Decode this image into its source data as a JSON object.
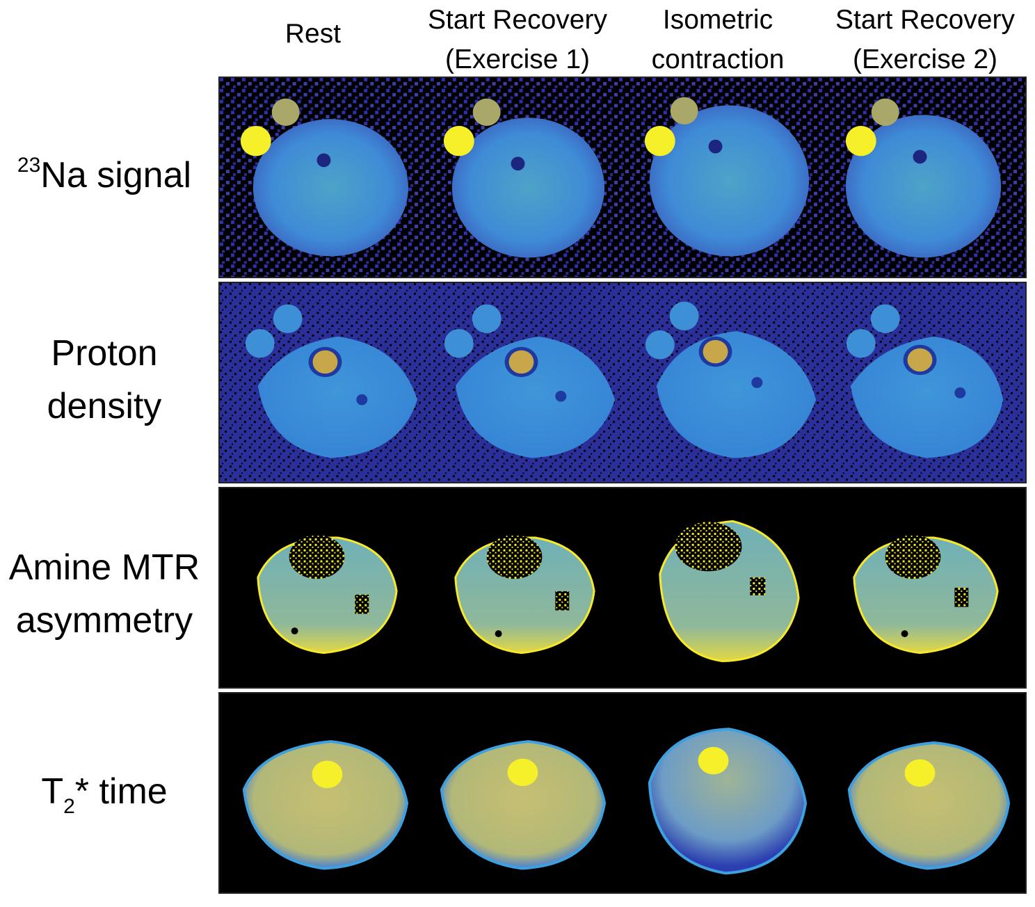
{
  "columns": [
    {
      "lines": [
        "Rest"
      ]
    },
    {
      "lines": [
        "Start Recovery",
        "(Exercise 1)"
      ]
    },
    {
      "lines": [
        "Isometric",
        "contraction"
      ]
    },
    {
      "lines": [
        "Start Recovery",
        "(Exercise 2)"
      ]
    }
  ],
  "rows": [
    {
      "id": "na",
      "label_sup": "23",
      "label_main": "Na signal",
      "lines": []
    },
    {
      "id": "pd",
      "lines": [
        "Proton",
        "density"
      ]
    },
    {
      "id": "mtr",
      "lines": [
        "Amine MTR",
        "asymmetry"
      ]
    },
    {
      "id": "t2",
      "label_main": "T",
      "label_sub": "2",
      "label_tail": "* time",
      "lines": []
    }
  ],
  "colors": {
    "viridis_dark": "#3b3fa8",
    "viridis_mid": "#3a8fd6",
    "viridis_cyan": "#4fb8b0",
    "viridis_yellow": "#f6e82a",
    "background_black": "#000000"
  }
}
